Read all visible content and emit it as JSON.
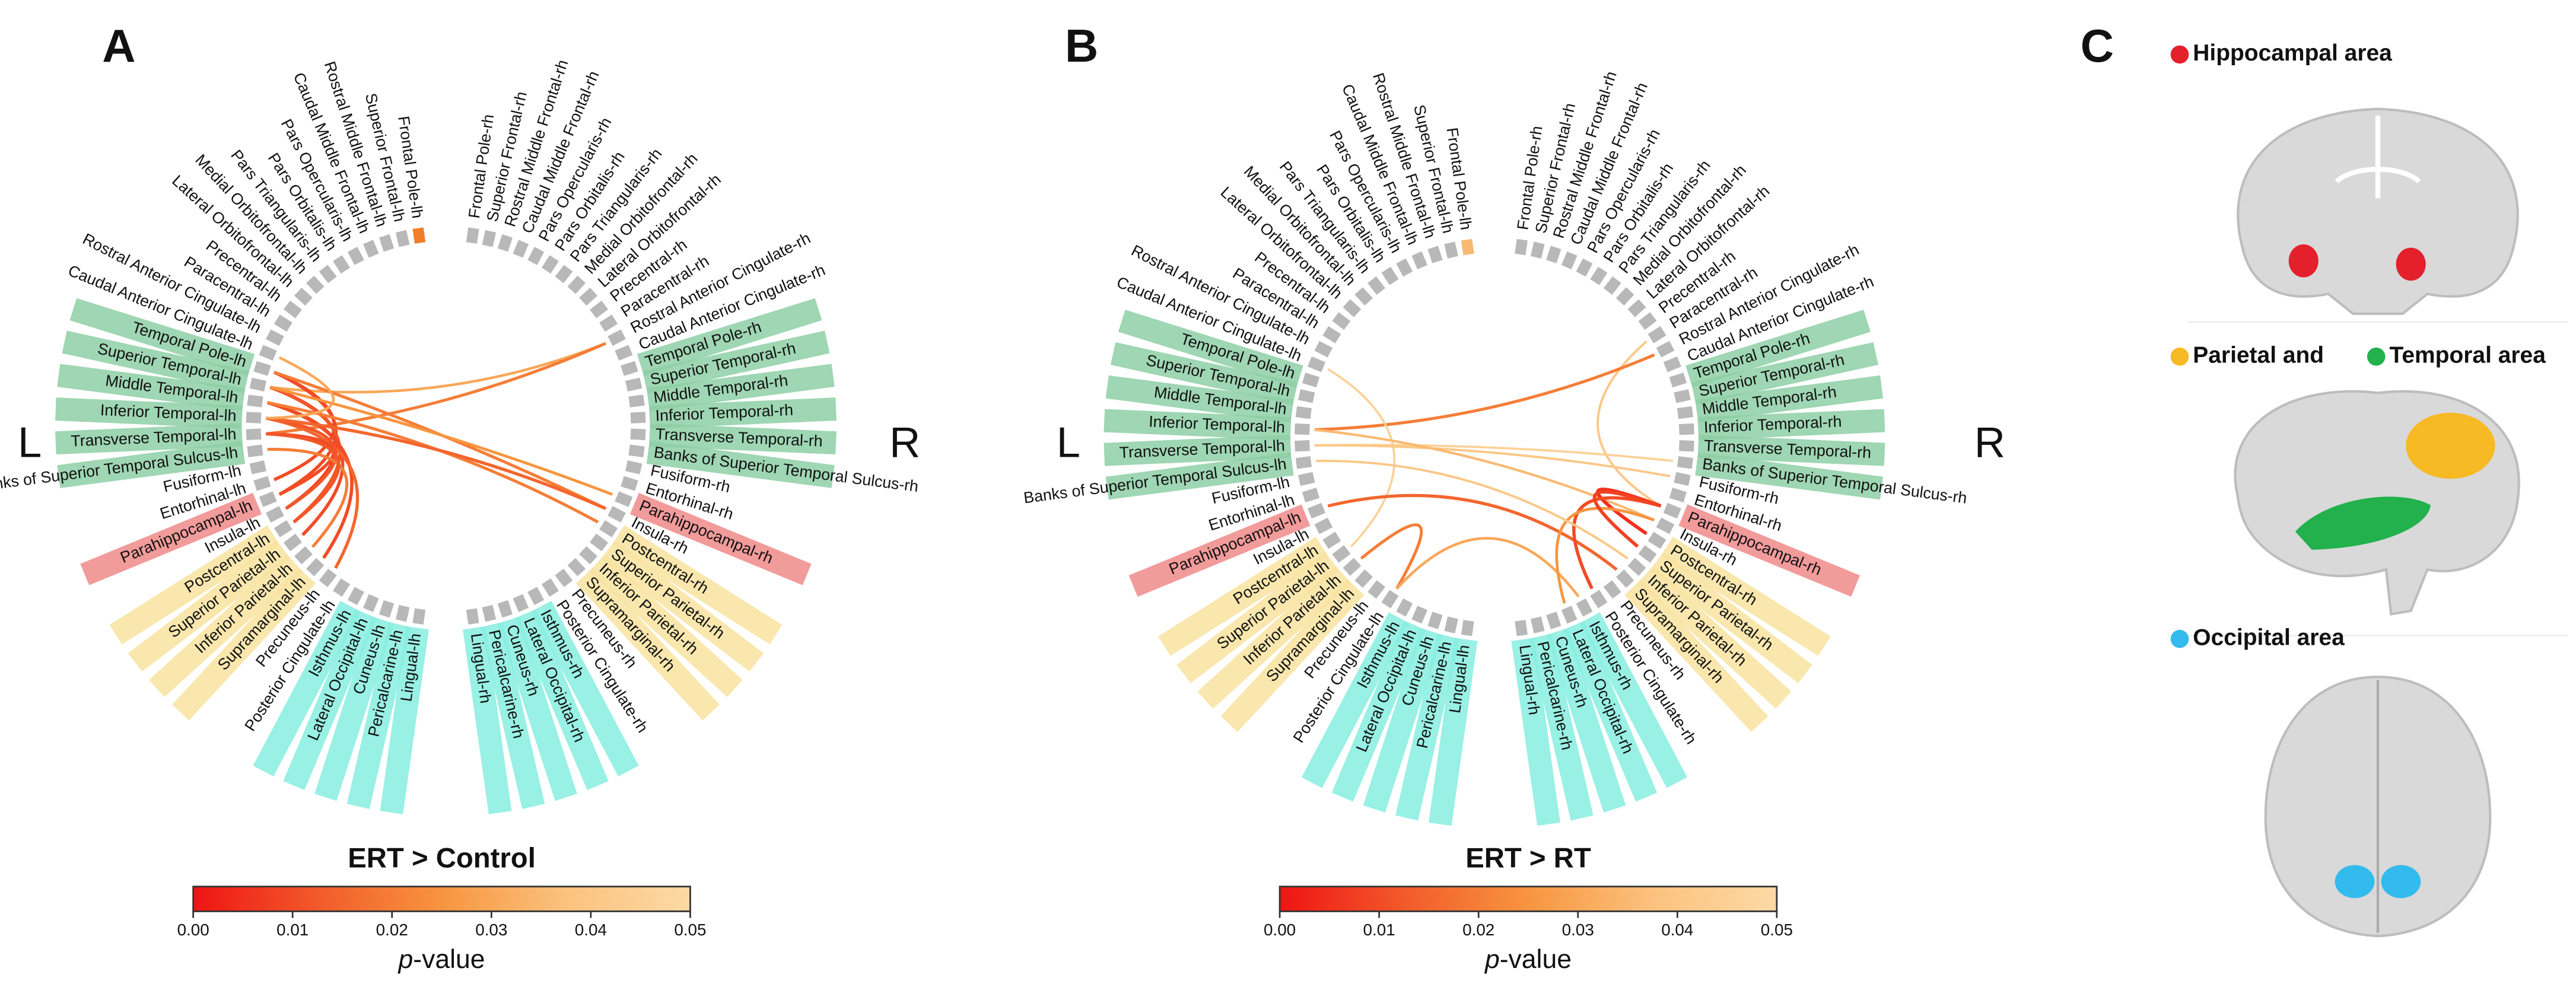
{
  "regions": {
    "lh": [
      "Frontal Pole-lh",
      "Superior Frontal-lh",
      "Rostral Middle Frontal-lh",
      "Caudal Middle Frontal-lh",
      "Pars Opercularis-lh",
      "Pars Orbitalis-lh",
      "Pars Triangularis-lh",
      "Medial Orbitofrontal-lh",
      "Lateral Orbitofrontal-lh",
      "Precentral-lh",
      "Paracentral-lh",
      "Rostral Anterior Cingulate-lh",
      "Caudal Anterior Cingulate-lh",
      "Temporal Pole-lh",
      "Superior Temporal-lh",
      "Middle Temporal-lh",
      "Inferior Temporal-lh",
      "Transverse Temporal-lh",
      "Banks of Superior Temporal Sulcus-lh",
      "Fusiform-lh",
      "Entorhinal-lh",
      "Parahippocampal-lh",
      "Insula-lh",
      "Postcentral-lh",
      "Superior Parietal-lh",
      "Inferior Parietal-lh",
      "Supramarginal-lh",
      "Precuneus-lh",
      "Posterior Cingulate-lh",
      "Isthmus-lh",
      "Lateral Occipital-lh",
      "Cuneus-lh",
      "Pericalcarine-lh",
      "Lingual-lh"
    ],
    "rh": [
      "Frontal Pole-rh",
      "Superior Frontal-rh",
      "Rostral Middle Frontal-rh",
      "Caudal Middle Frontal-rh",
      "Pars Opercularis-rh",
      "Pars Orbitalis-rh",
      "Pars Triangularis-rh",
      "Medial Orbitofrontal-rh",
      "Lateral Orbitofrontal-rh",
      "Precentral-rh",
      "Paracentral-rh",
      "Rostral Anterior Cingulate-rh",
      "Caudal Anterior Cingulate-rh",
      "Temporal Pole-rh",
      "Superior Temporal-rh",
      "Middle Temporal-rh",
      "Inferior Temporal-rh",
      "Transverse Temporal-rh",
      "Banks of Superior Temporal Sulcus-rh",
      "Fusiform-rh",
      "Entorhinal-rh",
      "Parahippocampal-rh",
      "Insula-rh",
      "Postcentral-rh",
      "Superior Parietal-rh",
      "Inferior Parietal-rh",
      "Supramarginal-rh",
      "Precuneus-rh",
      "Posterior Cingulate-rh",
      "Isthmus-rh",
      "Lateral Occipital-rh",
      "Cuneus-rh",
      "Pericalcarine-rh",
      "Lingual-rh"
    ],
    "bands": [
      {
        "from": 13,
        "to": 18,
        "color": "#8fd0a6"
      },
      {
        "from": 21,
        "to": 21,
        "color": "#f08a8a"
      },
      {
        "from": 23,
        "to": 26,
        "color": "#f8e3a0"
      },
      {
        "from": 29,
        "to": 33,
        "color": "#88eee0"
      }
    ]
  },
  "panels": [
    {
      "letter": "A",
      "left": "L",
      "right": "R",
      "title": "ERT > Control",
      "marked": [
        {
          "node": 0,
          "color": "#f07d2a"
        }
      ],
      "edges": [
        {
          "source": 14,
          "target": 45,
          "p": 0.03
        },
        {
          "source": 17,
          "target": 45,
          "p": 0.02
        },
        {
          "source": 13,
          "target": 20,
          "p": 0.01
        },
        {
          "source": 13,
          "target": 21,
          "p": 0.01
        },
        {
          "source": 14,
          "target": 22,
          "p": 0.008
        },
        {
          "source": 14,
          "target": 23,
          "p": 0.012
        },
        {
          "source": 15,
          "target": 24,
          "p": 0.01
        },
        {
          "source": 15,
          "target": 26,
          "p": 0.01
        },
        {
          "source": 16,
          "target": 27,
          "p": 0.015
        },
        {
          "source": 16,
          "target": 22,
          "p": 0.012
        },
        {
          "source": 13,
          "target": 56,
          "p": 0.02
        },
        {
          "source": 14,
          "target": 55,
          "p": 0.025
        },
        {
          "source": 15,
          "target": 57,
          "p": 0.02
        },
        {
          "source": 16,
          "target": 56,
          "p": 0.015
        },
        {
          "source": 17,
          "target": 21,
          "p": 0.01
        },
        {
          "source": 18,
          "target": 25,
          "p": 0.02
        },
        {
          "source": 12,
          "target": 16,
          "p": 0.03
        },
        {
          "source": 17,
          "target": 23,
          "p": 0.012
        }
      ]
    },
    {
      "letter": "B",
      "left": "L",
      "right": "R",
      "title": "ERT > RT",
      "marked": [
        {
          "node": 0,
          "color": "#f9b870"
        }
      ],
      "edges": [
        {
          "source": 44,
          "target": 55,
          "p": 0.04
        },
        {
          "source": 16,
          "target": 45,
          "p": 0.02
        },
        {
          "source": 12,
          "target": 24,
          "p": 0.045
        },
        {
          "source": 17,
          "target": 52,
          "p": 0.045
        },
        {
          "source": 17,
          "target": 53,
          "p": 0.04
        },
        {
          "source": 16,
          "target": 56,
          "p": 0.035
        },
        {
          "source": 21,
          "target": 60,
          "p": 0.015
        },
        {
          "source": 55,
          "target": 57,
          "p": 0.005
        },
        {
          "source": 55,
          "target": 62,
          "p": 0.01
        },
        {
          "source": 25,
          "target": 28,
          "p": 0.02
        },
        {
          "source": 28,
          "target": 63,
          "p": 0.03
        },
        {
          "source": 56,
          "target": 64,
          "p": 0.025
        },
        {
          "source": 55,
          "target": 58,
          "p": 0.008
        },
        {
          "source": 18,
          "target": 59,
          "p": 0.04
        }
      ]
    }
  ],
  "colorbar": {
    "lim": [
      0,
      0.05
    ],
    "colors": [
      "#ee1414",
      "#f25a2a",
      "#f7953f",
      "#fbc27e",
      "#fdd9a4"
    ],
    "ticks": [
      {
        "value": 0,
        "label": "0.00"
      },
      {
        "value": 0.01,
        "label": "0.01"
      },
      {
        "value": 0.02,
        "label": "0.02"
      },
      {
        "value": 0.03,
        "label": "0.03"
      },
      {
        "value": 0.04,
        "label": "0.04"
      },
      {
        "value": 0.05,
        "label": "0.05"
      }
    ],
    "label_italic": "p",
    "label": "-value"
  },
  "panel_c": {
    "letter": "C",
    "legend": [
      {
        "text": "Hippocampal area",
        "color": "#e4202c"
      },
      {
        "text": "Parietal and",
        "color": "#f7b924"
      },
      {
        "text": "Temporal area",
        "color": "#22b14c"
      },
      {
        "text": "Occipital area",
        "color": "#33bbee"
      }
    ]
  }
}
